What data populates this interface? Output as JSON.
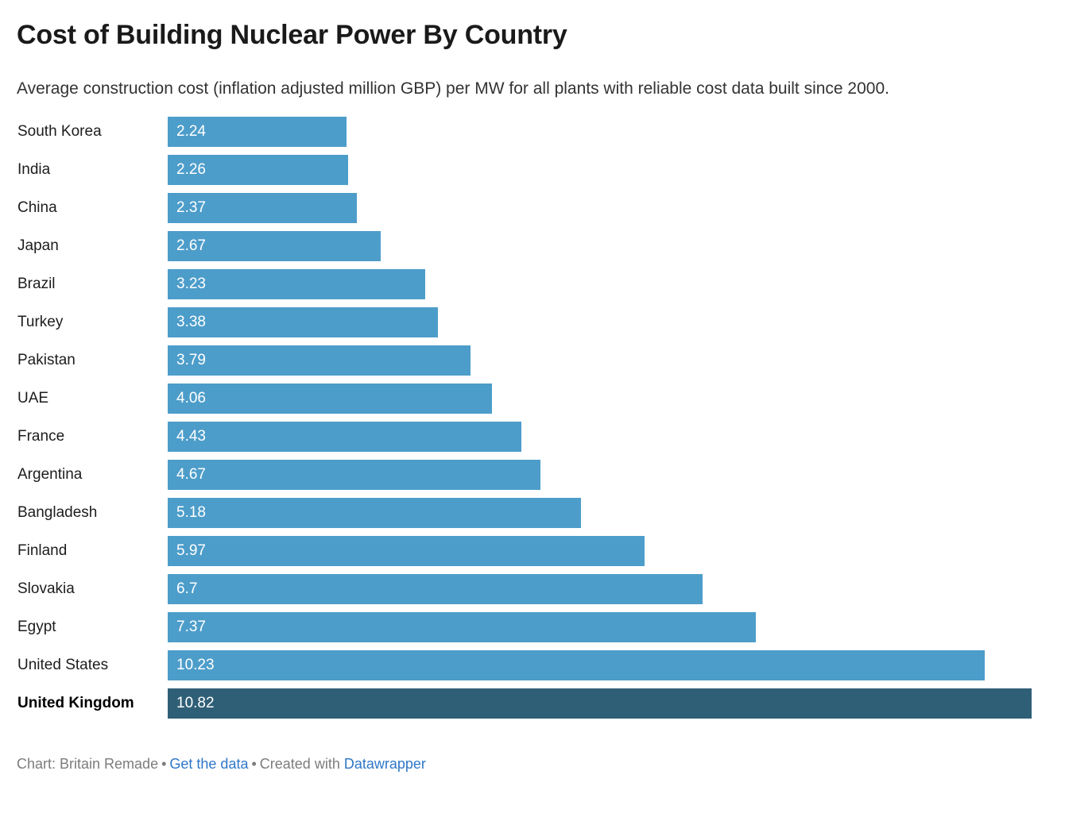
{
  "chart_data": {
    "type": "bar",
    "orientation": "horizontal",
    "title": "Cost of Building Nuclear Power By Country",
    "subtitle": "Average construction cost (inflation adjusted million GBP) per MW for all plants with reliable cost data built since 2000.",
    "categories": [
      "South Korea",
      "India",
      "China",
      "Japan",
      "Brazil",
      "Turkey",
      "Pakistan",
      "UAE",
      "France",
      "Argentina",
      "Bangladesh",
      "Finland",
      "Slovakia",
      "Egypt",
      "United States",
      "United Kingdom"
    ],
    "values": [
      2.24,
      2.26,
      2.37,
      2.67,
      3.23,
      3.38,
      3.79,
      4.06,
      4.43,
      4.67,
      5.18,
      5.97,
      6.7,
      7.37,
      10.23,
      10.82
    ],
    "value_labels": [
      "2.24",
      "2.26",
      "2.37",
      "2.67",
      "3.23",
      "3.38",
      "3.79",
      "4.06",
      "4.43",
      "4.67",
      "5.18",
      "5.97",
      "6.7",
      "7.37",
      "10.23",
      "10.82"
    ],
    "highlighted_category": "United Kingdom",
    "xlabel": "",
    "ylabel": "",
    "xlim": [
      0,
      10.82
    ],
    "grid": false,
    "legend": false,
    "value_label_position": "inside-start",
    "colors": {
      "bar": "#4D9DCA",
      "highlight": "#2F5F76",
      "value_text": "#FFFFFF"
    }
  },
  "footer": {
    "credit": "Chart: Britain Remade",
    "separator": "•",
    "get_data_label": "Get the data",
    "created_with": "Created with",
    "datawrapper_label": "Datawrapper"
  }
}
